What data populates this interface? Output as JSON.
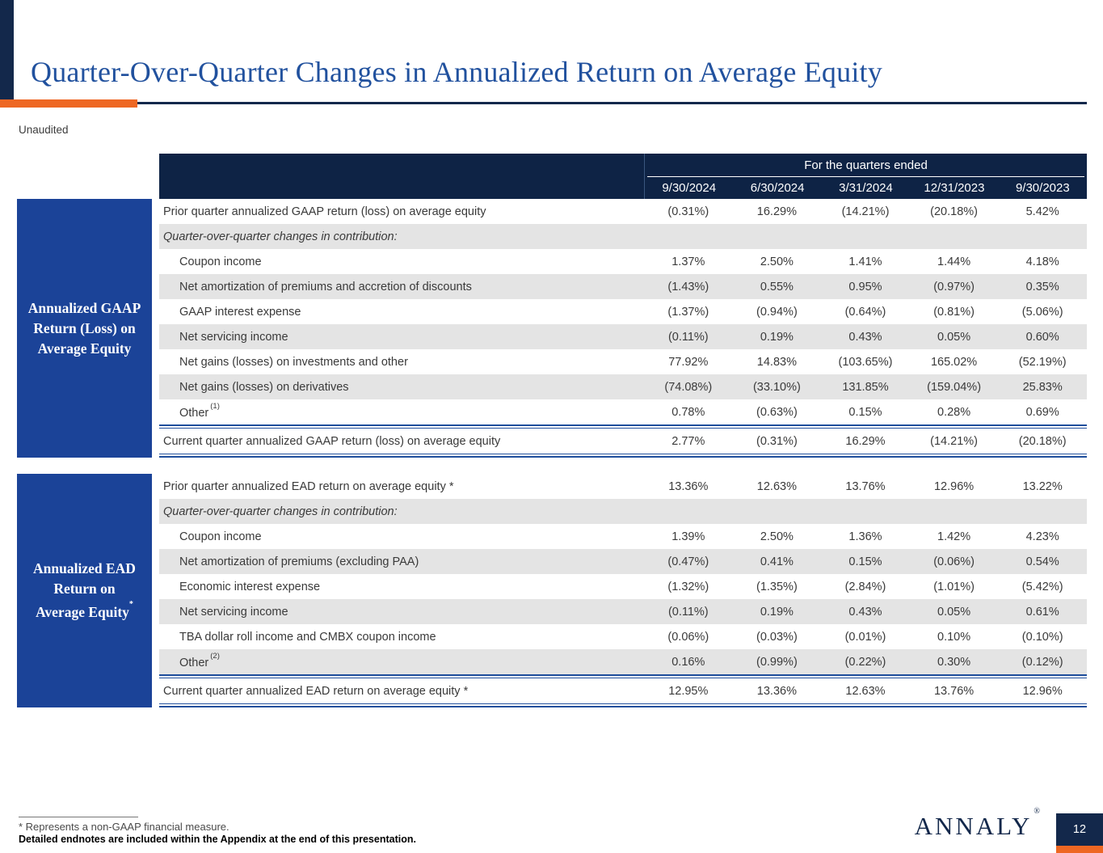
{
  "slide": {
    "title": "Quarter-Over-Quarter Changes in Annualized Return on Average Equity",
    "unaudited_label": "Unaudited",
    "logo_text": "ANNALY",
    "logo_reg_mark": "®",
    "page_number": "12"
  },
  "colors": {
    "header_navy": "#0e2345",
    "dark_navy": "#13284b",
    "sidebar_blue": "#1b4398",
    "accent_orange": "#ee6723",
    "row_shade_gray": "#e4e4e4",
    "title_blue": "#21519e",
    "total_rule_blue": "#1f4e9c"
  },
  "table": {
    "header": {
      "group_label": "For the quarters ended",
      "columns": [
        "9/30/2024",
        "6/30/2024",
        "3/31/2024",
        "12/31/2023",
        "9/30/2023"
      ]
    },
    "sections": [
      {
        "side_label_lines": [
          "Annualized GAAP",
          "Return (Loss) on",
          "Average Equity"
        ],
        "side_label_sup": "",
        "rows": [
          {
            "label": "Prior quarter annualized GAAP return (loss) on average equity",
            "sup": "",
            "type": "plain",
            "shade": false,
            "values": [
              "(0.31%)",
              "16.29%",
              "(14.21%)",
              "(20.18%)",
              "5.42%"
            ]
          },
          {
            "label": "Quarter-over-quarter changes in contribution:",
            "sup": "",
            "type": "subheader",
            "shade": true,
            "values": [
              "",
              "",
              "",
              "",
              ""
            ]
          },
          {
            "label": "Coupon income",
            "sup": "",
            "type": "indent",
            "shade": false,
            "values": [
              "1.37%",
              "2.50%",
              "1.41%",
              "1.44%",
              "4.18%"
            ]
          },
          {
            "label": "Net amortization of premiums and accretion of discounts",
            "sup": "",
            "type": "indent",
            "shade": true,
            "values": [
              "(1.43%)",
              "0.55%",
              "0.95%",
              "(0.97%)",
              "0.35%"
            ]
          },
          {
            "label": "GAAP interest expense",
            "sup": "",
            "type": "indent",
            "shade": false,
            "values": [
              "(1.37%)",
              "(0.94%)",
              "(0.64%)",
              "(0.81%)",
              "(5.06%)"
            ]
          },
          {
            "label": "Net servicing income",
            "sup": "",
            "type": "indent",
            "shade": true,
            "values": [
              "(0.11%)",
              "0.19%",
              "0.43%",
              "0.05%",
              "0.60%"
            ]
          },
          {
            "label": "Net gains (losses) on investments and other",
            "sup": "",
            "type": "indent",
            "shade": false,
            "values": [
              "77.92%",
              "14.83%",
              "(103.65%)",
              "165.02%",
              "(52.19%)"
            ]
          },
          {
            "label": "Net gains (losses) on derivatives",
            "sup": "",
            "type": "indent",
            "shade": true,
            "values": [
              "(74.08%)",
              "(33.10%)",
              "131.85%",
              "(159.04%)",
              "25.83%"
            ]
          },
          {
            "label": "Other",
            "sup": "(1)",
            "type": "indent",
            "shade": false,
            "values": [
              "0.78%",
              "(0.63%)",
              "0.15%",
              "0.28%",
              "0.69%"
            ]
          },
          {
            "label": "Current quarter annualized GAAP return (loss) on average equity",
            "sup": "",
            "type": "total",
            "shade": false,
            "values": [
              "2.77%",
              "(0.31%)",
              "16.29%",
              "(14.21%)",
              "(20.18%)"
            ]
          }
        ]
      },
      {
        "side_label_lines": [
          "Annualized EAD",
          "Return on",
          "Average Equity"
        ],
        "side_label_sup": "*",
        "rows": [
          {
            "label": "Prior quarter annualized EAD return on average equity *",
            "sup": "",
            "type": "plain",
            "shade": false,
            "values": [
              "13.36%",
              "12.63%",
              "13.76%",
              "12.96%",
              "13.22%"
            ]
          },
          {
            "label": "Quarter-over-quarter changes in contribution:",
            "sup": "",
            "type": "subheader",
            "shade": true,
            "values": [
              "",
              "",
              "",
              "",
              ""
            ]
          },
          {
            "label": "Coupon income",
            "sup": "",
            "type": "indent",
            "shade": false,
            "values": [
              "1.39%",
              "2.50%",
              "1.36%",
              "1.42%",
              "4.23%"
            ]
          },
          {
            "label": "Net amortization of premiums (excluding PAA)",
            "sup": "",
            "type": "indent",
            "shade": true,
            "values": [
              "(0.47%)",
              "0.41%",
              "0.15%",
              "(0.06%)",
              "0.54%"
            ]
          },
          {
            "label": "Economic interest expense",
            "sup": "",
            "type": "indent",
            "shade": false,
            "values": [
              "(1.32%)",
              "(1.35%)",
              "(2.84%)",
              "(1.01%)",
              "(5.42%)"
            ]
          },
          {
            "label": "Net servicing income",
            "sup": "",
            "type": "indent",
            "shade": true,
            "values": [
              "(0.11%)",
              "0.19%",
              "0.43%",
              "0.05%",
              "0.61%"
            ]
          },
          {
            "label": "TBA dollar roll income and CMBX coupon income",
            "sup": "",
            "type": "indent",
            "shade": false,
            "values": [
              "(0.06%)",
              "(0.03%)",
              "(0.01%)",
              "0.10%",
              "(0.10%)"
            ]
          },
          {
            "label": "Other",
            "sup": "(2)",
            "type": "indent",
            "shade": true,
            "values": [
              "0.16%",
              "(0.99%)",
              "(0.22%)",
              "0.30%",
              "(0.12%)"
            ]
          },
          {
            "label": "Current quarter annualized EAD return on average equity *",
            "sup": "",
            "type": "total",
            "shade": false,
            "values": [
              "12.95%",
              "13.36%",
              "12.63%",
              "13.76%",
              "12.96%"
            ]
          }
        ]
      }
    ]
  },
  "footnotes": {
    "line1": "* Represents a non-GAAP financial measure.",
    "line2": "Detailed endnotes are included within the Appendix at the end of this presentation."
  }
}
